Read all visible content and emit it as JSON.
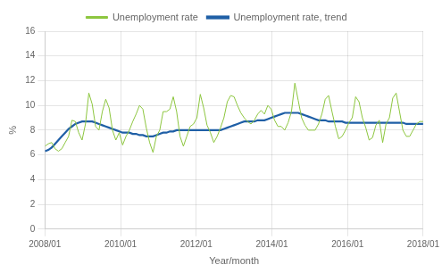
{
  "chart_data": {
    "type": "line",
    "xlabel": "Year/month",
    "ylabel": "%",
    "xlim": [
      0,
      120
    ],
    "xticks": [
      {
        "value": 0,
        "label": "2008/01"
      },
      {
        "value": 24,
        "label": "2010/01"
      },
      {
        "value": 48,
        "label": "2012/01"
      },
      {
        "value": 72,
        "label": "2014/01"
      },
      {
        "value": 96,
        "label": "2016/01"
      },
      {
        "value": 120,
        "label": "2018/01"
      }
    ],
    "ylim": [
      0,
      16
    ],
    "yticks": [
      0,
      2,
      4,
      6,
      8,
      10,
      12,
      14,
      16
    ],
    "grid": true,
    "legend": "top",
    "x": [
      0,
      1.0714285714,
      2.1428571429,
      3.2142857143,
      4.2857142857,
      5.3571428571,
      6.4285714286,
      7.5,
      8.5714285714,
      9.6428571429,
      10.7142857143,
      11.7857142857,
      12.8571428571,
      13.9285714286,
      15,
      16.0714285714,
      17.1428571429,
      18.2142857143,
      19.2857142857,
      20.3571428571,
      21.4285714286,
      22.5,
      23.5714285714,
      24.6428571429,
      25.7142857143,
      26.7857142857,
      27.8571428571,
      28.9285714286,
      30,
      31.0714285714,
      32.1428571429,
      33.2142857143,
      34.2857142857,
      35.3571428571,
      36.4285714286,
      37.5,
      38.5714285714,
      39.6428571429,
      40.7142857143,
      41.7857142857,
      42.8571428571,
      43.9285714286,
      45,
      46.0714285714,
      47.1428571429,
      48.2142857143,
      49.2857142857,
      50.3571428571,
      51.4285714286,
      52.5,
      53.5714285714,
      54.6428571429,
      55.7142857143,
      56.7857142857,
      57.8571428571,
      58.9285714286,
      60,
      61.0714285714,
      62.1428571429,
      63.2142857143,
      64.2857142857,
      65.3571428571,
      66.4285714286,
      67.5,
      68.5714285714,
      69.6428571429,
      70.7142857143,
      71.7857142857,
      72.8571428571,
      73.9285714286,
      75,
      76.0714285714,
      77.1428571429,
      78.2142857143,
      79.2857142857,
      80.3571428571,
      81.4285714286,
      82.5,
      83.5714285714,
      84.6428571429,
      85.7142857143,
      86.7857142857,
      87.8571428571,
      88.9285714286,
      90,
      91.0714285714,
      92.1428571429,
      93.2142857143,
      94.2857142857,
      95.3571428571,
      96.4285714286,
      97.5,
      98.5714285714,
      99.6428571429,
      100.7142857143,
      101.7857142857,
      102.8571428571,
      103.9285714286,
      105,
      106.0714285714,
      107.1428571429,
      108.2142857143,
      109.2857142857,
      110.3571428571,
      111.4285714286,
      112.5,
      113.5714285714,
      114.6428571429,
      115.7142857143,
      116.7857142857,
      117.8571428571,
      118.9285714286,
      120
    ],
    "series": [
      {
        "name": "Unemployment rate",
        "color": "#8dc63f",
        "values": [
          6.7,
          6.9,
          7.0,
          6.5,
          6.3,
          6.5,
          7.0,
          7.5,
          8.8,
          8.7,
          7.8,
          7.2,
          8.5,
          11.0,
          10.1,
          8.3,
          8.0,
          9.5,
          10.5,
          9.8,
          8.0,
          7.2,
          7.8,
          6.8,
          7.5,
          8.0,
          8.7,
          9.3,
          10.0,
          9.7,
          8.2,
          7.0,
          6.2,
          7.5,
          8.0,
          9.5,
          9.5,
          9.7,
          10.7,
          9.5,
          7.5,
          6.7,
          7.5,
          8.3,
          8.5,
          9.0,
          10.9,
          9.8,
          8.4,
          7.8,
          7.0,
          7.5,
          8.2,
          9.0,
          10.3,
          10.8,
          10.7,
          10.0,
          9.4,
          9.0,
          8.7,
          8.5,
          8.8,
          9.3,
          9.6,
          9.3,
          10.0,
          9.7,
          8.8,
          8.3,
          8.3,
          8.0,
          8.6,
          9.5,
          11.8,
          10.4,
          9.0,
          8.4,
          8.0,
          8.0,
          8.0,
          8.5,
          9.3,
          10.5,
          10.8,
          9.5,
          8.3,
          7.3,
          7.5,
          8.0,
          8.6,
          9.0,
          10.7,
          10.3,
          9.0,
          8.2,
          7.2,
          7.4,
          8.4,
          8.8,
          7.0,
          8.5,
          9.0,
          10.6,
          11.0,
          9.5,
          8.0,
          7.5,
          7.5,
          8.0,
          8.5,
          8.7,
          8.7
        ]
      },
      {
        "name": "Unemployment rate, trend",
        "color": "#1f5fa6",
        "values": [
          6.3,
          6.4,
          6.6,
          6.9,
          7.2,
          7.5,
          7.8,
          8.1,
          8.3,
          8.5,
          8.6,
          8.7,
          8.7,
          8.7,
          8.7,
          8.6,
          8.5,
          8.4,
          8.3,
          8.2,
          8.1,
          8.0,
          7.9,
          7.8,
          7.8,
          7.8,
          7.7,
          7.7,
          7.6,
          7.6,
          7.5,
          7.5,
          7.5,
          7.6,
          7.7,
          7.8,
          7.8,
          7.9,
          7.9,
          8.0,
          8.0,
          8.0,
          8.0,
          8.0,
          8.0,
          8.0,
          8.0,
          8.0,
          8.0,
          8.0,
          8.0,
          8.0,
          8.0,
          8.1,
          8.2,
          8.3,
          8.4,
          8.5,
          8.6,
          8.7,
          8.7,
          8.7,
          8.7,
          8.8,
          8.8,
          8.8,
          8.9,
          9.0,
          9.1,
          9.2,
          9.3,
          9.4,
          9.4,
          9.4,
          9.4,
          9.4,
          9.3,
          9.2,
          9.1,
          9.0,
          8.9,
          8.8,
          8.8,
          8.8,
          8.7,
          8.7,
          8.7,
          8.7,
          8.7,
          8.6,
          8.6,
          8.6,
          8.6,
          8.6,
          8.6,
          8.6,
          8.6,
          8.6,
          8.6,
          8.6,
          8.6,
          8.6,
          8.6,
          8.6,
          8.6,
          8.6,
          8.6,
          8.5,
          8.5,
          8.5,
          8.5,
          8.5,
          8.5
        ]
      }
    ]
  }
}
